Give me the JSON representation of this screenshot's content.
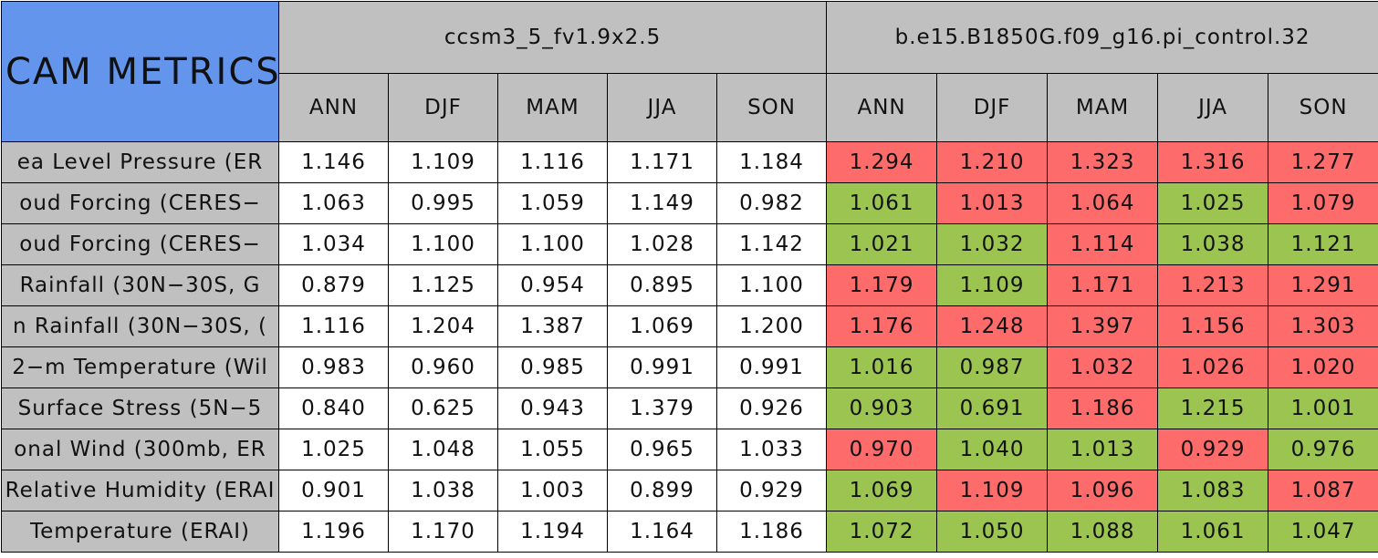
{
  "header": {
    "title": "CAM METRICS"
  },
  "groups": [
    {
      "name": "ccsm3_5_fv1.9x2.5",
      "seasons": [
        "ANN",
        "DJF",
        "MAM",
        "JJA",
        "SON"
      ]
    },
    {
      "name": "b.e15.B1850G.f09_g16.pi_control.32",
      "seasons": [
        "ANN",
        "DJF",
        "MAM",
        "JJA",
        "SON"
      ]
    }
  ],
  "rows": [
    {
      "label": "ea Level Pressure (ER",
      "values": [
        "1.146",
        "1.109",
        "1.116",
        "1.171",
        "1.184",
        "1.294",
        "1.210",
        "1.323",
        "1.316",
        "1.277"
      ],
      "colors": [
        "#ffffff",
        "#ffffff",
        "#ffffff",
        "#ffffff",
        "#ffffff",
        "#fd6b6b",
        "#fd6b6b",
        "#fd6b6b",
        "#fd6b6b",
        "#fd6b6b"
      ]
    },
    {
      "label": "oud Forcing (CERES−",
      "values": [
        "1.063",
        "0.995",
        "1.059",
        "1.149",
        "0.982",
        "1.061",
        "1.013",
        "1.064",
        "1.025",
        "1.079"
      ],
      "colors": [
        "#ffffff",
        "#ffffff",
        "#ffffff",
        "#ffffff",
        "#ffffff",
        "#9bc451",
        "#fd6b6b",
        "#fd6b6b",
        "#9bc451",
        "#fd6b6b"
      ]
    },
    {
      "label": "oud Forcing (CERES−",
      "values": [
        "1.034",
        "1.100",
        "1.100",
        "1.028",
        "1.142",
        "1.021",
        "1.032",
        "1.114",
        "1.038",
        "1.121"
      ],
      "colors": [
        "#ffffff",
        "#ffffff",
        "#ffffff",
        "#ffffff",
        "#ffffff",
        "#9bc451",
        "#9bc451",
        "#fd6b6b",
        "#9bc451",
        "#9bc451"
      ]
    },
    {
      "label": "Rainfall (30N−30S, G",
      "values": [
        "0.879",
        "1.125",
        "0.954",
        "0.895",
        "1.100",
        "1.179",
        "1.109",
        "1.171",
        "1.213",
        "1.291"
      ],
      "colors": [
        "#ffffff",
        "#ffffff",
        "#ffffff",
        "#ffffff",
        "#ffffff",
        "#fd6b6b",
        "#9bc451",
        "#fd6b6b",
        "#fd6b6b",
        "#fd6b6b"
      ]
    },
    {
      "label": "n Rainfall (30N−30S, (",
      "values": [
        "1.116",
        "1.204",
        "1.387",
        "1.069",
        "1.200",
        "1.176",
        "1.248",
        "1.397",
        "1.156",
        "1.303"
      ],
      "colors": [
        "#ffffff",
        "#ffffff",
        "#ffffff",
        "#ffffff",
        "#ffffff",
        "#fd6b6b",
        "#fd6b6b",
        "#fd6b6b",
        "#fd6b6b",
        "#fd6b6b"
      ]
    },
    {
      "label": "2−m Temperature (Wil",
      "values": [
        "0.983",
        "0.960",
        "0.985",
        "0.991",
        "0.991",
        "1.016",
        "0.987",
        "1.032",
        "1.026",
        "1.020"
      ],
      "colors": [
        "#ffffff",
        "#ffffff",
        "#ffffff",
        "#ffffff",
        "#ffffff",
        "#9bc451",
        "#9bc451",
        "#fd6b6b",
        "#fd6b6b",
        "#fd6b6b"
      ]
    },
    {
      "label": "Surface Stress (5N−5",
      "values": [
        "0.840",
        "0.625",
        "0.943",
        "1.379",
        "0.926",
        "0.903",
        "0.691",
        "1.186",
        "1.215",
        "1.001"
      ],
      "colors": [
        "#ffffff",
        "#ffffff",
        "#ffffff",
        "#ffffff",
        "#ffffff",
        "#9bc451",
        "#9bc451",
        "#fd6b6b",
        "#9bc451",
        "#9bc451"
      ]
    },
    {
      "label": "onal Wind (300mb, ER",
      "values": [
        "1.025",
        "1.048",
        "1.055",
        "0.965",
        "1.033",
        "0.970",
        "1.040",
        "1.013",
        "0.929",
        "0.976"
      ],
      "colors": [
        "#ffffff",
        "#ffffff",
        "#ffffff",
        "#ffffff",
        "#ffffff",
        "#fd6b6b",
        "#9bc451",
        "#9bc451",
        "#fd6b6b",
        "#9bc451"
      ]
    },
    {
      "label": "Relative Humidity (ERAI",
      "values": [
        "0.901",
        "1.038",
        "1.003",
        "0.899",
        "0.929",
        "1.069",
        "1.109",
        "1.096",
        "1.083",
        "1.087"
      ],
      "colors": [
        "#ffffff",
        "#ffffff",
        "#ffffff",
        "#ffffff",
        "#ffffff",
        "#9bc451",
        "#fd6b6b",
        "#fd6b6b",
        "#9bc451",
        "#fd6b6b"
      ]
    },
    {
      "label": "Temperature (ERAI)",
      "values": [
        "1.196",
        "1.170",
        "1.194",
        "1.164",
        "1.186",
        "1.072",
        "1.050",
        "1.088",
        "1.061",
        "1.047"
      ],
      "colors": [
        "#ffffff",
        "#ffffff",
        "#ffffff",
        "#ffffff",
        "#ffffff",
        "#9bc451",
        "#9bc451",
        "#9bc451",
        "#9bc451",
        "#9bc451"
      ]
    }
  ]
}
